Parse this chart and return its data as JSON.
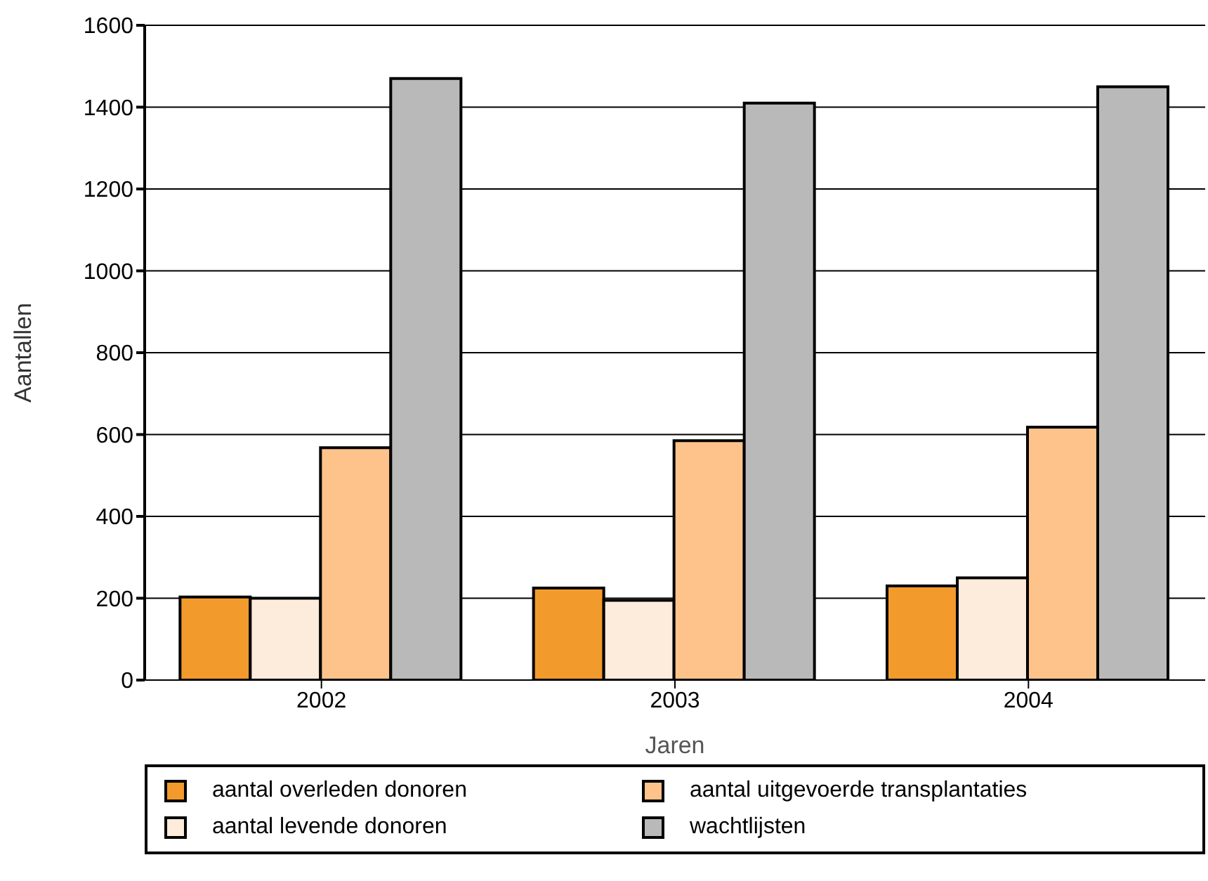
{
  "chart_data": {
    "type": "bar",
    "xlabel": "Jaren",
    "ylabel": "Aantallen",
    "categories": [
      "2002",
      "2003",
      "2004"
    ],
    "series": [
      {
        "name": "aantal overleden donoren",
        "color": "#f39a2c",
        "values": [
          203,
          225,
          230
        ]
      },
      {
        "name": "aantal levende donoren",
        "color": "#fdebdb",
        "values": [
          200,
          195,
          250
        ]
      },
      {
        "name": "aantal uitgevoerde transplantaties",
        "color": "#fdc38b",
        "values": [
          568,
          585,
          618
        ]
      },
      {
        "name": "wachtlijsten",
        "color": "#b9b9ba",
        "values": [
          1470,
          1410,
          1450
        ]
      }
    ],
    "ylim": [
      0,
      1600
    ],
    "yticks": [
      0,
      200,
      400,
      600,
      800,
      1000,
      1200,
      1400,
      1600
    ],
    "grid": "y",
    "legend": "bottom"
  }
}
